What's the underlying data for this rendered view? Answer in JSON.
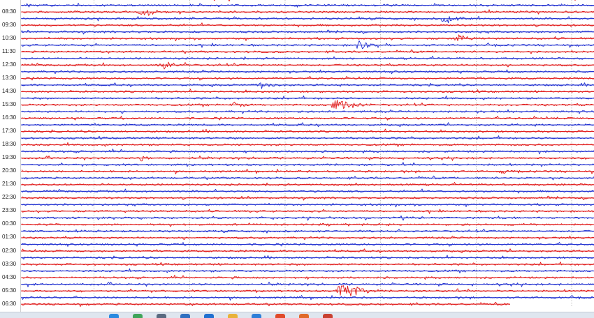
{
  "seismogram": {
    "colors": {
      "trace_a": "#1f2fd0",
      "trace_b": "#e01818",
      "gridline": "#9a9a9a",
      "label": "#222222"
    },
    "hour_labels": [
      "08:30",
      "09:30",
      "10:30",
      "11:30",
      "12:30",
      "13:30",
      "14:30",
      "15:30",
      "16:30",
      "17:30",
      "18:30",
      "19:30",
      "20:30",
      "21:30",
      "22:30",
      "23:30",
      "00:30",
      "01:30",
      "02:30",
      "03:30",
      "04:30",
      "05:30",
      "06:30"
    ],
    "traces_per_hour": 2,
    "vertical_grid_lines": 6,
    "events": [
      {
        "hour_label": "08:30",
        "trace": 1,
        "position": 0.21,
        "amplitude": 9,
        "duration": 0.03
      },
      {
        "hour_label": "09:30",
        "trace": 0,
        "position": 0.74,
        "amplitude": 10,
        "duration": 0.03
      },
      {
        "hour_label": "10:30",
        "trace": 1,
        "position": 0.76,
        "amplitude": 10,
        "duration": 0.02
      },
      {
        "hour_label": "11:30",
        "trace": 0,
        "position": 0.59,
        "amplitude": 8,
        "duration": 0.03
      },
      {
        "hour_label": "12:30",
        "trace": 1,
        "position": 0.25,
        "amplitude": 7,
        "duration": 0.03
      },
      {
        "hour_label": "14:30",
        "trace": 0,
        "position": 0.42,
        "amplitude": 7,
        "duration": 0.02
      },
      {
        "hour_label": "15:30",
        "trace": 1,
        "position": 0.55,
        "amplitude": 10,
        "duration": 0.04
      },
      {
        "hour_label": "15:30",
        "trace": 1,
        "position": 0.37,
        "amplitude": 5,
        "duration": 0.02
      },
      {
        "hour_label": "19:30",
        "trace": 1,
        "position": 0.21,
        "amplitude": 4,
        "duration": 0.02
      },
      {
        "hour_label": "20:30",
        "trace": 1,
        "position": 0.84,
        "amplitude": 5,
        "duration": 0.02
      },
      {
        "hour_label": "05:30",
        "trace": 1,
        "position": 0.56,
        "amplitude": 18,
        "duration": 0.04
      }
    ]
  },
  "taskbar": {
    "icons": [
      {
        "name": "edge-icon",
        "color": "#2a8ae0"
      },
      {
        "name": "chrome-icon",
        "color": "#3fa45a"
      },
      {
        "name": "calculator-icon",
        "color": "#5a6a80"
      },
      {
        "name": "store-icon",
        "color": "#3070c0"
      },
      {
        "name": "mail-icon",
        "color": "#2070d0"
      },
      {
        "name": "folder-icon",
        "color": "#e8b23a"
      },
      {
        "name": "photos-icon",
        "color": "#2f7fd8"
      },
      {
        "name": "browser-icon",
        "color": "#e04a2a"
      },
      {
        "name": "media-icon",
        "color": "#e06a2a"
      },
      {
        "name": "app-icon",
        "color": "#c84030"
      }
    ]
  }
}
